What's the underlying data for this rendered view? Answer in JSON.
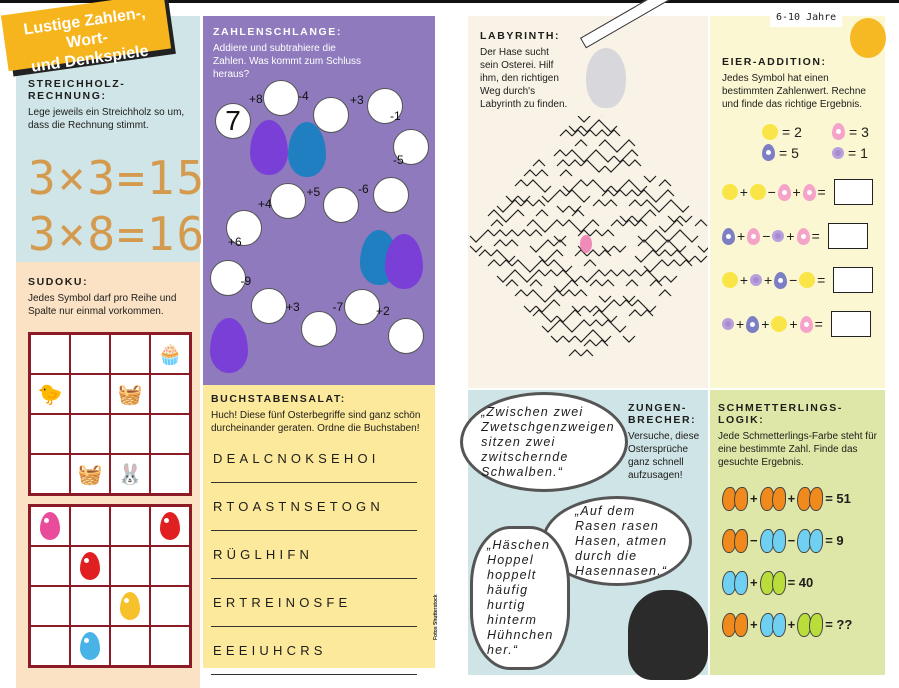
{
  "banner": {
    "line1": "Lustige Zahlen-, Wort-",
    "line2": "und Denkspiele"
  },
  "age_label": "6-10 Jahre",
  "streichholz": {
    "title": "STREICHHOLZ-RECHNUNG:",
    "desc": "Lege jeweils ein Streichholz so um, dass die Rechnung stimmt.",
    "equations": [
      "3×3=15",
      "3×8=16"
    ]
  },
  "sudoku": {
    "title": "SUDOKU:",
    "desc": "Jedes Symbol darf pro Reihe und Spalte nur einmal vorkommen.",
    "grid1": [
      [
        "",
        "",
        "",
        "cake-icon"
      ],
      [
        "chick-icon",
        "",
        "basket-icon",
        ""
      ],
      [
        "",
        "",
        "",
        ""
      ],
      [
        "",
        "basket-icon",
        "bunny-icon",
        ""
      ]
    ],
    "grid2": [
      [
        "pink-egg-icon",
        "",
        "",
        "red-egg-icon"
      ],
      [
        "",
        "red-egg-icon",
        "",
        ""
      ],
      [
        "",
        "",
        "yellow-egg-icon",
        ""
      ],
      [
        "",
        "blue-egg-icon",
        "",
        ""
      ]
    ]
  },
  "schlange": {
    "title": "ZAHLENSCHLANGE:",
    "desc": "Addiere und subtrahiere die Zahlen. Was kommt zum Schluss heraus?",
    "start": "7",
    "ops": [
      "+8",
      "-4",
      "+3",
      "-1",
      "-5",
      "-6",
      "+5",
      "+4",
      "+6",
      "-9",
      "+3",
      "-7",
      "+2"
    ]
  },
  "salat": {
    "title": "BUCHSTABENSALAT:",
    "desc": "Huch! Diese fünf Osterbegriffe sind ganz schön durcheinander geraten. Ordne die Buchstaben!",
    "words": [
      "DEALCNOKSEHOI",
      "RTOASTNSETOGN",
      "RÜGLHIFN",
      "ERTREINOSFE",
      "EEEIUHCRS"
    ]
  },
  "credit": "Fotos Shutterstock",
  "labyrinth": {
    "title": "LABYRINTH:",
    "desc": "Der Hase sucht sein Osterei. Hilf ihm, den richtigen Weg durch's Labyrinth zu finden."
  },
  "eier": {
    "title": "EIER-ADDITION:",
    "desc": "Jedes Symbol hat einen bestimmten Zahlenwert. Rechne und finde das richtige Ergebnis.",
    "legend": [
      {
        "icon": "chick",
        "value": "= 2"
      },
      {
        "icon": "pink-egg",
        "value": "= 3"
      },
      {
        "icon": "blue-egg",
        "value": "= 5"
      },
      {
        "icon": "flower",
        "value": "= 1"
      }
    ],
    "rows": [
      [
        "chick",
        "+",
        "chick",
        "−",
        "pink-egg",
        "+",
        "pink-egg",
        "="
      ],
      [
        "blue-egg",
        "+",
        "pink-egg",
        "−",
        "flower",
        "+",
        "pink-egg",
        "="
      ],
      [
        "chick",
        "+",
        "flower",
        "+",
        "blue-egg",
        "−",
        "chick",
        "="
      ],
      [
        "flower",
        "+",
        "blue-egg",
        "+",
        "chick",
        "+",
        "pink-egg",
        "="
      ]
    ]
  },
  "zungen": {
    "title": "ZUNGEN-BRECHER:",
    "desc": "Versuche, diese Ostersprüche ganz schnell aufzusagen!",
    "quotes": [
      "„Zwischen zwei Zwetschgenzweigen sitzen zwei zwitschernde Schwalben.“",
      "„Auf dem Rasen rasen Hasen, atmen durch die Hasennasen.“",
      "„Häschen Hoppel hoppelt häufig hurtig hinterm Hühnchen her.“"
    ]
  },
  "schmett": {
    "title": "SCHMETTERLINGS-LOGIK:",
    "desc": "Jede Schmetterlings-Farbe steht für eine bestimmte Zahl. Finde das gesuchte Ergebnis.",
    "rows": [
      {
        "items": [
          "orange",
          "+",
          "orange",
          "+",
          "orange"
        ],
        "result": "= 51"
      },
      {
        "items": [
          "orange",
          "−",
          "blue",
          "−",
          "blue"
        ],
        "result": "= 9"
      },
      {
        "items": [
          "blue",
          "+",
          "green"
        ],
        "result": "= 40"
      },
      {
        "items": [
          "orange",
          "+",
          "blue",
          "+",
          "green"
        ],
        "result": "= ??"
      }
    ]
  },
  "colors": {
    "streich": "#d0e5e7",
    "sudoku": "#fbe2c4",
    "schlange": "#8e7abd",
    "salat": "#fde99b",
    "labyrinth": "#f8f3e6",
    "eier": "#fbf7d2",
    "schmett": "#dee7a7",
    "banner": "#f6b51c"
  }
}
